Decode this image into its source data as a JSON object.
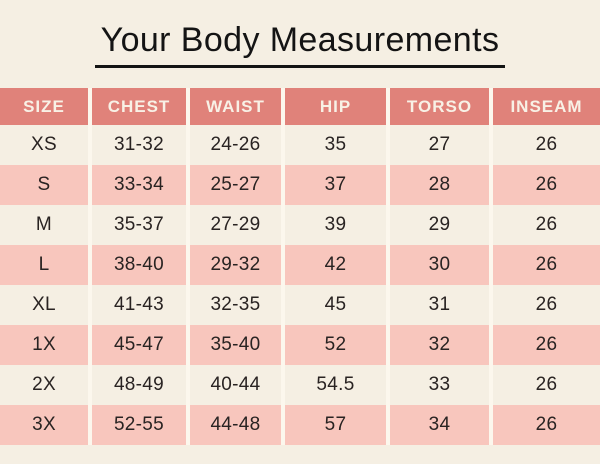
{
  "chart_data": {
    "type": "table",
    "title": "Your Body Measurements",
    "columns": [
      "SIZE",
      "CHEST",
      "WAIST",
      "HIP",
      "TORSO",
      "INSEAM"
    ],
    "rows": [
      [
        "XS",
        "31-32",
        "24-26",
        "35",
        "27",
        "26"
      ],
      [
        "S",
        "33-34",
        "25-27",
        "37",
        "28",
        "26"
      ],
      [
        "M",
        "35-37",
        "27-29",
        "39",
        "29",
        "26"
      ],
      [
        "L",
        "38-40",
        "29-32",
        "42",
        "30",
        "26"
      ],
      [
        "XL",
        "41-43",
        "32-35",
        "45",
        "31",
        "26"
      ],
      [
        "1X",
        "45-47",
        "35-40",
        "52",
        "32",
        "26"
      ],
      [
        "2X",
        "48-49",
        "40-44",
        "54.5",
        "33",
        "26"
      ],
      [
        "3X",
        "52-55",
        "44-48",
        "57",
        "34",
        "26"
      ]
    ]
  },
  "colors": {
    "background": "#f5efe3",
    "header_bg": "#e0827a",
    "header_text": "#f8f1e6",
    "stripe_row_bg": "#f8c6bd",
    "plain_row_bg": "#f5efe3",
    "divider": "#fcf7ed",
    "body_text": "#292322",
    "title_text": "#141414"
  }
}
